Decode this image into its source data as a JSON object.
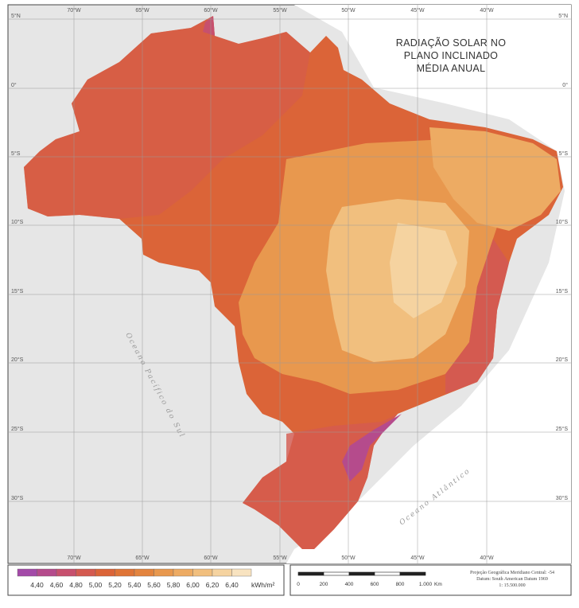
{
  "title": [
    "RADIAÇÃO SOLAR NO",
    "PLANO INCLINADO",
    "MÉDIA ANUAL"
  ],
  "longitude_labels": [
    "70°W",
    "65°W",
    "60°W",
    "55°W",
    "50°W",
    "45°W",
    "40°W"
  ],
  "latitude_labels": [
    "5°N",
    "0°",
    "5°S",
    "10°S",
    "15°S",
    "20°S",
    "25°S",
    "30°S"
  ],
  "ocean_labels": {
    "pacific": "Oceano Pacífico do Sul",
    "atlantic": "Oceano Atlântico"
  },
  "legend": {
    "values": [
      "4,40",
      "4,60",
      "4,80",
      "5,00",
      "5,20",
      "5,40",
      "5,60",
      "5,80",
      "6,00",
      "6,20",
      "6,40"
    ],
    "unit": "kWh/m²",
    "colors": [
      "#a34aa8",
      "#b54b8c",
      "#c7506e",
      "#d45a50",
      "#db6438",
      "#df7436",
      "#e3843e",
      "#e8984e",
      "#edab63",
      "#f1bf7e",
      "#f5d3a0",
      "#f8e3c0"
    ]
  },
  "scale_bar": {
    "labels": [
      "0",
      "200",
      "400",
      "600",
      "800",
      "1.000"
    ],
    "unit": "Km"
  },
  "projection": [
    "Projeção Geográfica    Meridiano Central: -54",
    "Datum: South American Datum 1969",
    "1: 15.500.000"
  ]
}
